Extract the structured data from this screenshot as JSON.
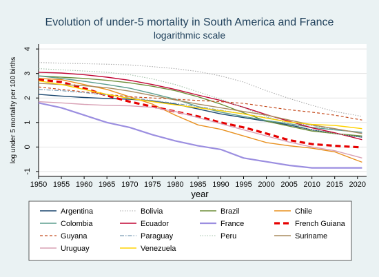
{
  "chart_data": {
    "type": "line",
    "title": "Evolution of under-5 mortality in South America and France",
    "subtitle": "logarithmic scale",
    "xlabel": "year",
    "ylabel": "log under 5 mortality per 100 births",
    "xlim": [
      1950,
      2022
    ],
    "ylim": [
      -1.2,
      4.2
    ],
    "x_ticks": [
      1950,
      1955,
      1960,
      1965,
      1970,
      1975,
      1980,
      1985,
      1990,
      1995,
      2000,
      2005,
      2010,
      2015,
      2020
    ],
    "y_ticks": [
      -1,
      0,
      1,
      2,
      3,
      4
    ],
    "grid": true,
    "legend_position": "bottom",
    "x": [
      1950,
      1955,
      1960,
      1965,
      1970,
      1975,
      1980,
      1985,
      1990,
      1995,
      2000,
      2005,
      2010,
      2015,
      2021
    ],
    "series": [
      {
        "name": "Argentina",
        "color": "#1a476f",
        "dash": "",
        "width": 1.4,
        "values": [
          2.15,
          2.08,
          2.02,
          1.98,
          1.95,
          1.88,
          1.75,
          1.55,
          1.35,
          1.2,
          1.05,
          0.9,
          0.7,
          0.55,
          0.4
        ]
      },
      {
        "name": "Bolivia",
        "color": "#a8a8a8",
        "dash": "1.5 2",
        "width": 1.1,
        "values": [
          3.45,
          3.42,
          3.4,
          3.38,
          3.35,
          3.28,
          3.2,
          3.08,
          2.9,
          2.65,
          2.3,
          1.98,
          1.7,
          1.45,
          1.25
        ]
      },
      {
        "name": "Brazil",
        "color": "#6e8e3a",
        "dash": "",
        "width": 1.4,
        "values": [
          2.9,
          2.85,
          2.8,
          2.72,
          2.62,
          2.48,
          2.3,
          2.05,
          1.75,
          1.4,
          1.05,
          0.85,
          0.65,
          0.55,
          0.45
        ]
      },
      {
        "name": "Chile",
        "color": "#e8901e",
        "dash": "",
        "width": 1.4,
        "values": [
          2.8,
          2.75,
          2.55,
          2.35,
          2.05,
          1.75,
          1.3,
          0.9,
          0.72,
          0.45,
          0.18,
          0.05,
          -0.05,
          -0.2,
          -0.62
        ]
      },
      {
        "name": "Colombia",
        "color": "#5c9e8e",
        "dash": "",
        "width": 1.4,
        "values": [
          2.9,
          2.8,
          2.68,
          2.55,
          2.4,
          2.18,
          1.95,
          1.65,
          1.42,
          1.25,
          1.08,
          0.95,
          0.8,
          0.7,
          0.6
        ]
      },
      {
        "name": "Ecuador",
        "color": "#c10534",
        "dash": "",
        "width": 1.4,
        "values": [
          3.05,
          3.02,
          2.95,
          2.85,
          2.72,
          2.55,
          2.35,
          2.12,
          1.9,
          1.62,
          1.32,
          1.05,
          0.78,
          0.58,
          0.3
        ]
      },
      {
        "name": "France",
        "color": "#9b8ee0",
        "dash": "",
        "width": 2.2,
        "values": [
          1.8,
          1.6,
          1.3,
          1.0,
          0.8,
          0.5,
          0.25,
          0.05,
          -0.1,
          -0.45,
          -0.6,
          -0.75,
          -0.85,
          -0.85,
          -0.85
        ]
      },
      {
        "name": "French Guiana",
        "color": "#e60000",
        "dash": "8 5",
        "width": 3.2,
        "values": [
          2.75,
          2.65,
          2.4,
          2.1,
          1.85,
          1.65,
          1.45,
          1.25,
          1.0,
          0.8,
          0.55,
          0.28,
          0.12,
          0.05,
          -0.02
        ]
      },
      {
        "name": "Guyana",
        "color": "#c44a1c",
        "dash": "4 3",
        "width": 1.2,
        "values": [
          2.45,
          2.35,
          2.25,
          2.15,
          2.05,
          2.0,
          1.95,
          1.9,
          1.85,
          1.78,
          1.65,
          1.52,
          1.42,
          1.3,
          1.1
        ]
      },
      {
        "name": "Paraguay",
        "color": "#7a9cb5",
        "dash": "6 2 1.5 2",
        "width": 1.2,
        "values": [
          2.35,
          2.3,
          2.22,
          2.12,
          2.0,
          1.9,
          1.78,
          1.65,
          1.5,
          1.35,
          1.2,
          1.02,
          0.88,
          0.72,
          0.58
        ]
      },
      {
        "name": "Peru",
        "color": "#9fbfa6",
        "dash": "1.5 2",
        "width": 1.1,
        "values": [
          3.2,
          3.15,
          3.1,
          3.05,
          2.95,
          2.78,
          2.55,
          2.25,
          1.95,
          1.6,
          1.25,
          0.95,
          0.7,
          0.55,
          0.4
        ]
      },
      {
        "name": "Suriname",
        "color": "#a88b5f",
        "dash": "",
        "width": 1.4,
        "values": [
          2.6,
          2.55,
          2.5,
          2.42,
          2.28,
          2.1,
          1.92,
          1.75,
          1.6,
          1.45,
          1.3,
          1.1,
          0.9,
          0.75,
          0.55
        ]
      },
      {
        "name": "Uruguay",
        "color": "#d8a0b4",
        "dash": "",
        "width": 1.4,
        "values": [
          1.85,
          1.8,
          1.74,
          1.7,
          1.68,
          1.62,
          1.45,
          1.2,
          0.95,
          0.7,
          0.45,
          0.2,
          0.0,
          -0.15,
          -0.45
        ]
      },
      {
        "name": "Venezuela",
        "color": "#ffd200",
        "dash": "",
        "width": 1.4,
        "values": [
          2.7,
          2.55,
          2.35,
          2.15,
          1.98,
          1.85,
          1.72,
          1.6,
          1.48,
          1.35,
          1.18,
          1.02,
          0.92,
          0.88,
          0.75
        ]
      }
    ]
  },
  "colors": {
    "frame_background": "#eaf2f3",
    "plot_background": "#ffffff",
    "title_color": "#1e3f5a"
  }
}
